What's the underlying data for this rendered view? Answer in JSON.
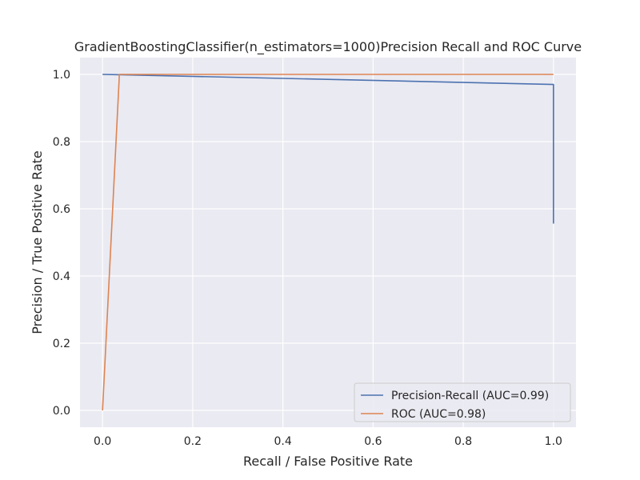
{
  "chart_data": {
    "type": "line",
    "title": "GradientBoostingClassifier(n_estimators=1000)Precision Recall and ROC Curve",
    "xlabel": "Recall / False Positive Rate",
    "ylabel": "Precision / True Positive Rate",
    "xlim": [
      -0.05,
      1.05
    ],
    "ylim": [
      -0.05,
      1.05
    ],
    "x_ticks": [
      0.0,
      0.2,
      0.4,
      0.6,
      0.8,
      1.0
    ],
    "x_tick_labels": [
      "0.0",
      "0.2",
      "0.4",
      "0.6",
      "0.8",
      "1.0"
    ],
    "y_ticks": [
      0.0,
      0.2,
      0.4,
      0.6,
      0.8,
      1.0
    ],
    "y_tick_labels": [
      "0.0",
      "0.2",
      "0.4",
      "0.6",
      "0.8",
      "1.0"
    ],
    "grid": true,
    "background_color": "#EAEAF2",
    "grid_color": "#FFFFFF",
    "legend_position": "lower-right",
    "series": [
      {
        "name": "Precision-Recall (AUC=0.99)",
        "color": "#4C72B0",
        "x": [
          0.0,
          0.04,
          1.0,
          1.0
        ],
        "y": [
          1.0,
          0.999,
          0.97,
          0.556
        ]
      },
      {
        "name": "ROC (AUC=0.98)",
        "color": "#DD8452",
        "x": [
          0.0,
          0.037,
          0.037,
          1.0
        ],
        "y": [
          0.0,
          0.99,
          1.0,
          1.0
        ]
      }
    ]
  }
}
